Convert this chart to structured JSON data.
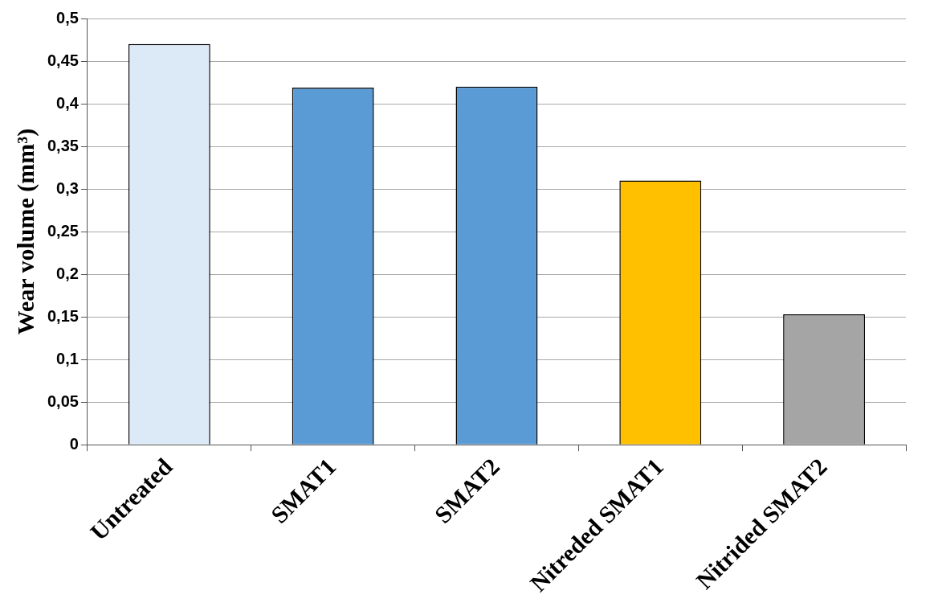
{
  "chart_data": {
    "type": "bar",
    "ylabel": "Wear volume (mm³)",
    "categories": [
      "Untreated",
      "SMAT1",
      "SMAT2",
      "Nitreded SMAT1",
      "Nitrided SMAT2"
    ],
    "values": [
      0.47,
      0.419,
      0.42,
      0.31,
      0.153
    ],
    "colors": [
      "#dce9f6",
      "#5b9bd5",
      "#5b9bd5",
      "#ffc000",
      "#a5a5a5"
    ],
    "ylim": [
      0,
      0.5
    ],
    "yticks": [
      0,
      {
        "value": 0.05,
        "label": "0,05"
      },
      {
        "value": 0.1,
        "label": "0,1"
      },
      {
        "value": 0.15,
        "label": "0,15"
      },
      {
        "value": 0.2,
        "label": "0,2"
      },
      {
        "value": 0.25,
        "label": "0,25"
      },
      {
        "value": 0.3,
        "label": "0,3"
      },
      {
        "value": 0.35,
        "label": "0,35"
      },
      {
        "value": 0.4,
        "label": "0,4"
      },
      {
        "value": 0.45,
        "label": "0,45"
      },
      {
        "value": 0.5,
        "label": "0,5"
      }
    ],
    "grid": "y"
  }
}
